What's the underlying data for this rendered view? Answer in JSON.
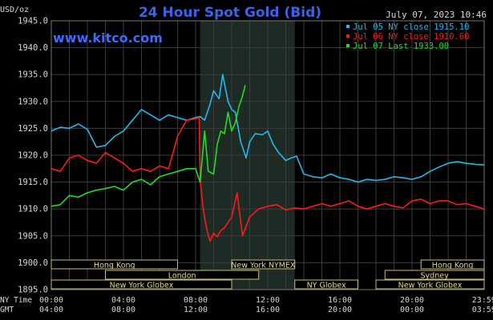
{
  "header": {
    "unit_label": "USD/oz",
    "title": "24 Hour Spot Gold (Bid)",
    "datetime": "July 07, 2023 10:46",
    "site": "www.kitco.com"
  },
  "colors": {
    "background": "#000000",
    "grid": "#3c3c3c",
    "shade": "#1e2a24",
    "title": "#3a63e8",
    "site": "#3d6bff",
    "text": "#d8d8d8",
    "session_fill": "#000000",
    "session_border": "#c8bf7a",
    "session_text": "#e0d890"
  },
  "legend": {
    "placement": "top-right",
    "entries": [
      {
        "label": "Jul 05 NY close 1915.10",
        "color": "#22b8f0"
      },
      {
        "label": "Jul 06 NY close 1910.60",
        "color": "#ff1a1a"
      },
      {
        "label": "Jul 07 Last 1933.00",
        "color": "#22dd22"
      }
    ]
  },
  "sessions": [
    {
      "label": "Hong Kong",
      "start": 0,
      "end": 7
    },
    {
      "label": "London",
      "start": 3,
      "end": 11.5
    },
    {
      "label": "New York Globex",
      "start": 0,
      "end": 10
    },
    {
      "label": "New York NYMEX",
      "start": 10,
      "end": 13.5
    },
    {
      "label": "NY Globex",
      "start": 13.5,
      "end": 17
    },
    {
      "label": "Hong Kong",
      "start": 20.5,
      "end": 24
    },
    {
      "label": "Sydney",
      "start": 18.5,
      "end": 24
    },
    {
      "label": "New York Globex",
      "start": 18,
      "end": 24
    }
  ],
  "time_axis": {
    "row1_label": "NY Time",
    "row2_label": "GMT",
    "ny_ticks": [
      "00:00",
      "04:00",
      "08:00",
      "12:00",
      "16:00",
      "20:00",
      "23:59"
    ],
    "gmt_ticks": [
      "04:00",
      "08:00",
      "12:00",
      "16:00",
      "20:00",
      "00:00",
      "03:59"
    ]
  },
  "chart_data": {
    "type": "line",
    "title": "24 Hour Spot Gold (Bid)",
    "ylabel": "USD/oz",
    "xlabel": "NY Time",
    "xlim": [
      0,
      24
    ],
    "ylim": [
      1895,
      1945
    ],
    "yticks": [
      "1945.0",
      "1940.0",
      "1935.0",
      "1930.0",
      "1925.0",
      "1920.0",
      "1915.0",
      "1910.0",
      "1905.0",
      "1900.0",
      "1895.0"
    ],
    "grid": true,
    "shaded_x_range": [
      8.25,
      13.5
    ],
    "series": [
      {
        "name": "Jul 05 NY close 1915.10",
        "color": "#22b8f0",
        "x": [
          0,
          0.5,
          1,
          1.5,
          2,
          2.5,
          3,
          3.5,
          4,
          4.5,
          5,
          5.5,
          6,
          6.5,
          7,
          7.5,
          8,
          8.25,
          8.5,
          8.8,
          9,
          9.3,
          9.5,
          9.8,
          10,
          10.2,
          10.5,
          10.8,
          11,
          11.3,
          11.7,
          12,
          12.3,
          12.6,
          13,
          13.3,
          13.6,
          14,
          14.5,
          15,
          15.5,
          16,
          16.5,
          17,
          17.5,
          18,
          18.5,
          19,
          19.5,
          20,
          20.5,
          21,
          21.5,
          22,
          22.5,
          23,
          23.5,
          23.99
        ],
        "y": [
          1924.5,
          1925.2,
          1925.0,
          1925.8,
          1924.8,
          1921.5,
          1921.8,
          1923.5,
          1924.5,
          1926.5,
          1928.5,
          1927.5,
          1926.5,
          1927.5,
          1927.0,
          1926.5,
          1927.0,
          1927.2,
          1926.5,
          1929.5,
          1932.0,
          1930.5,
          1935.0,
          1930.0,
          1928.5,
          1928.0,
          1922.5,
          1919.5,
          1922.5,
          1924.0,
          1923.8,
          1924.5,
          1922.0,
          1920.5,
          1919.0,
          1919.5,
          1919.8,
          1916.5,
          1916.0,
          1915.8,
          1916.5,
          1915.8,
          1915.5,
          1915.0,
          1915.5,
          1915.3,
          1915.5,
          1916.0,
          1915.8,
          1915.5,
          1916.0,
          1917.0,
          1917.8,
          1918.5,
          1918.8,
          1918.5,
          1918.3,
          1918.2
        ]
      },
      {
        "name": "Jul 06 NY close 1910.60",
        "color": "#ff1a1a",
        "x": [
          0,
          0.5,
          1,
          1.5,
          2,
          2.5,
          3,
          3.5,
          4,
          4.5,
          5,
          5.5,
          6,
          6.5,
          7,
          7.5,
          8,
          8.2,
          8.25,
          8.4,
          8.6,
          8.8,
          9,
          9.2,
          9.4,
          9.6,
          10,
          10.3,
          10.6,
          11,
          11.5,
          12,
          12.5,
          13,
          13.5,
          14,
          14.5,
          15,
          15.5,
          16,
          16.5,
          17,
          17.5,
          18,
          18.5,
          19,
          19.5,
          20,
          20.5,
          21,
          21.5,
          22,
          22.5,
          23,
          23.5,
          23.99
        ],
        "y": [
          1917.5,
          1917.0,
          1919.5,
          1920.0,
          1919.0,
          1918.5,
          1920.5,
          1919.5,
          1918.5,
          1917.0,
          1917.5,
          1917.0,
          1918.0,
          1917.5,
          1923.5,
          1926.5,
          1926.8,
          1927.0,
          1916.0,
          1910.5,
          1906.5,
          1904.0,
          1905.5,
          1904.8,
          1906.0,
          1906.5,
          1908.5,
          1913.0,
          1905.0,
          1908.5,
          1910.0,
          1910.5,
          1910.8,
          1909.8,
          1910.2,
          1910.0,
          1910.5,
          1911.0,
          1910.5,
          1911.0,
          1911.5,
          1910.5,
          1910.0,
          1910.5,
          1911.0,
          1910.5,
          1910.2,
          1911.5,
          1911.8,
          1911.0,
          1911.5,
          1911.5,
          1910.8,
          1911.0,
          1910.5,
          1910.0
        ]
      },
      {
        "name": "Jul 07 Last 1933.00",
        "color": "#22dd22",
        "x": [
          0,
          0.5,
          1,
          1.5,
          2,
          2.5,
          3,
          3.5,
          4,
          4.5,
          5,
          5.5,
          6,
          6.5,
          7,
          7.5,
          8,
          8.25,
          8.5,
          8.7,
          9,
          9.2,
          9.4,
          9.6,
          9.8,
          10,
          10.2,
          10.4,
          10.6,
          10.75
        ],
        "y": [
          1910.5,
          1910.8,
          1912.5,
          1912.2,
          1913.0,
          1913.5,
          1913.8,
          1914.2,
          1913.5,
          1915.0,
          1915.5,
          1914.5,
          1916.0,
          1916.5,
          1917.0,
          1917.5,
          1917.5,
          1915.0,
          1924.5,
          1917.0,
          1916.5,
          1922.0,
          1924.5,
          1924.0,
          1928.0,
          1924.5,
          1926.0,
          1929.0,
          1931.0,
          1933.0
        ]
      }
    ]
  }
}
